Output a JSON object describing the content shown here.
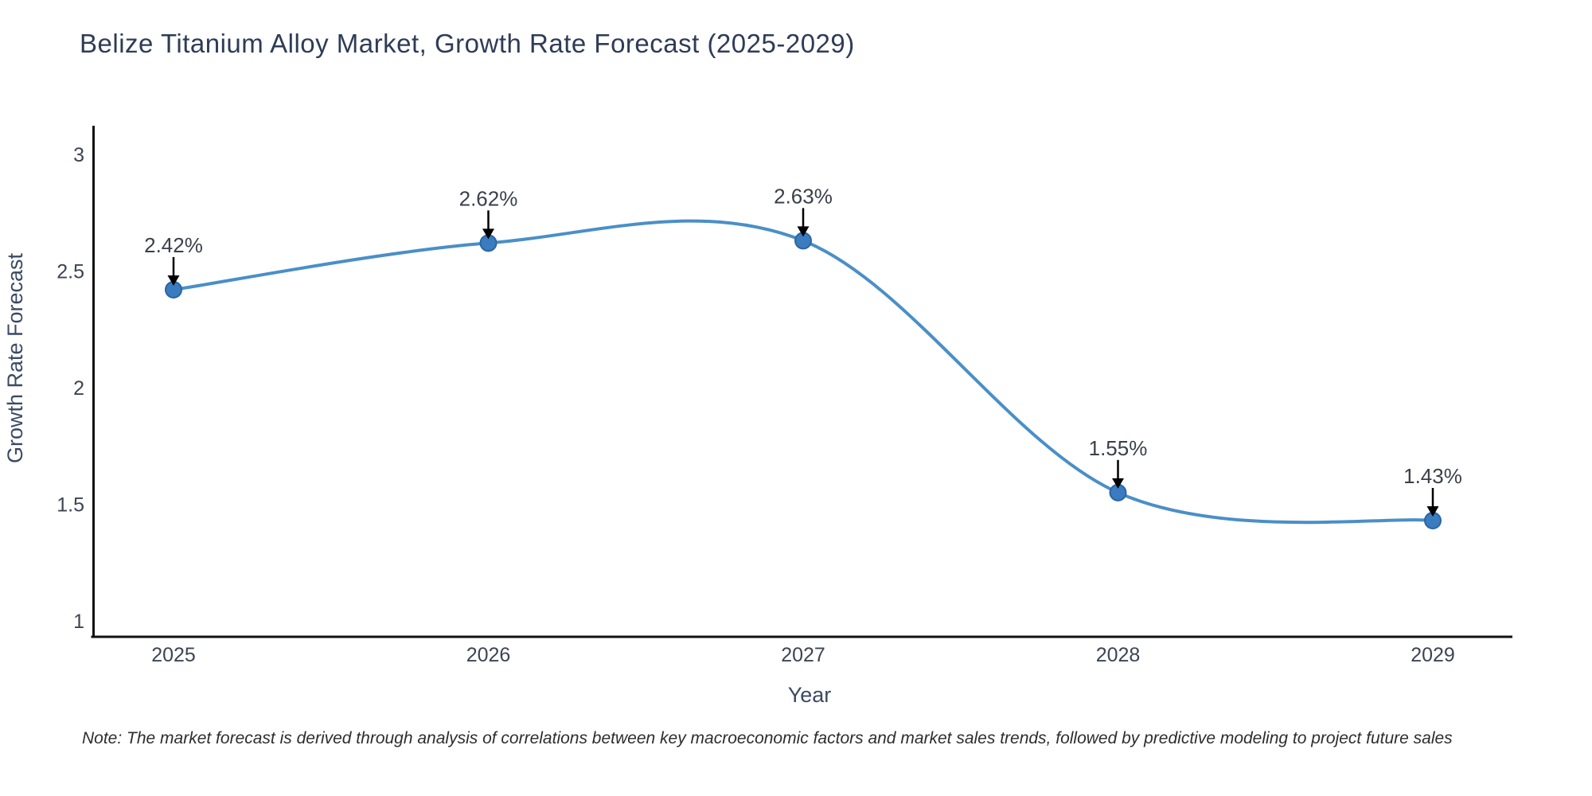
{
  "page": {
    "title": "Belize Titanium Alloy Market, Growth Rate Forecast (2025-2029)",
    "note": "Note: The market forecast is derived through analysis of correlations between key macroeconomic factors and market sales trends, followed by predictive modeling to project future sales"
  },
  "chart_data": {
    "type": "line",
    "title": "Belize Titanium Alloy Market, Growth Rate Forecast (2025-2029)",
    "xlabel": "Year",
    "ylabel": "Growth Rate Forecast",
    "x": [
      2025,
      2026,
      2027,
      2028,
      2029
    ],
    "series": [
      {
        "name": "Growth Rate Forecast",
        "values": [
          2.42,
          2.62,
          2.63,
          1.55,
          1.43
        ]
      }
    ],
    "point_labels": [
      "2.42%",
      "2.62%",
      "2.63%",
      "1.55%",
      "1.43%"
    ],
    "xticks": [
      "2025",
      "2026",
      "2027",
      "2028",
      "2029"
    ],
    "yticks": [
      1,
      1.5,
      2,
      2.5,
      3
    ],
    "ylim": [
      0.93,
      3.12
    ],
    "grid": false,
    "legend": "none",
    "line_smoothing": "spline",
    "colors": {
      "line": "#4a8fc7",
      "marker_fill": "#3a7cbf",
      "marker_edge": "#2b66a3",
      "axis_spine": "#111111",
      "title_text": "#2e3c56",
      "tick_text": "#3d4453",
      "axis_label_text": "#3b4a63",
      "point_label_text": "#3a3f4a",
      "annotation_arrow": "#000000"
    }
  }
}
